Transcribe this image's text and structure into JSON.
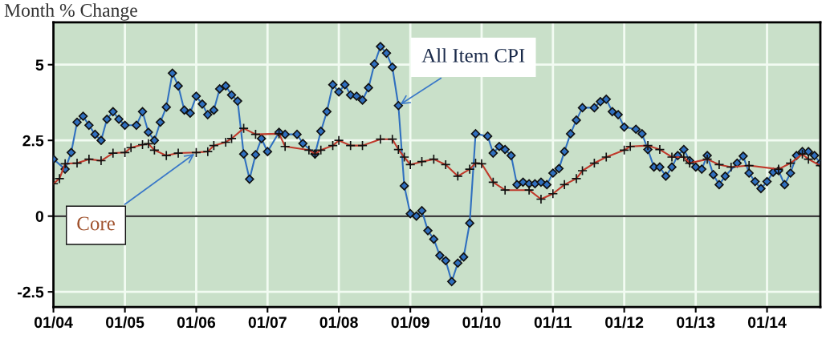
{
  "chart_data": {
    "type": "line",
    "title": "Month % Change",
    "xlim": [
      "2004-01",
      "2014-10"
    ],
    "ylim": [
      -3,
      6.4
    ],
    "xticks": [
      {
        "value": "2004-01",
        "label": "01/04"
      },
      {
        "value": "2005-01",
        "label": "01/05"
      },
      {
        "value": "2006-01",
        "label": "01/06"
      },
      {
        "value": "2007-01",
        "label": "01/07"
      },
      {
        "value": "2008-01",
        "label": "01/08"
      },
      {
        "value": "2009-01",
        "label": "01/09"
      },
      {
        "value": "2010-01",
        "label": "01/10"
      },
      {
        "value": "2011-01",
        "label": "01/11"
      },
      {
        "value": "2012-01",
        "label": "01/12"
      },
      {
        "value": "2013-01",
        "label": "01/13"
      },
      {
        "value": "2014-01",
        "label": "01/14"
      }
    ],
    "yticks": [
      -2.5,
      0,
      2.5,
      5
    ],
    "grid": true,
    "legend": false,
    "ref_lines": [
      {
        "axis": "y",
        "value": 0,
        "color": "#1a1a1a"
      }
    ],
    "series": [
      {
        "name": "All Item CPI",
        "color": "#2f6fbf",
        "marker": "diamond",
        "x": [
          "2004-01",
          "2004-03",
          "2004-04",
          "2004-05",
          "2004-06",
          "2004-07",
          "2004-08",
          "2004-09",
          "2004-10",
          "2004-11",
          "2004-12",
          "2005-01",
          "2005-03",
          "2005-04",
          "2005-05",
          "2005-06",
          "2005-07",
          "2005-08",
          "2005-09",
          "2005-10",
          "2005-11",
          "2005-12",
          "2006-01",
          "2006-02",
          "2006-03",
          "2006-04",
          "2006-05",
          "2006-06",
          "2006-07",
          "2006-08",
          "2006-09",
          "2006-10",
          "2006-11",
          "2006-12",
          "2007-01",
          "2007-03",
          "2007-04",
          "2007-06",
          "2007-07",
          "2007-09",
          "2007-10",
          "2007-11",
          "2007-12",
          "2008-01",
          "2008-02",
          "2008-03",
          "2008-04",
          "2008-05",
          "2008-06",
          "2008-07",
          "2008-08",
          "2008-09",
          "2008-10",
          "2008-11",
          "2008-12",
          "2009-01",
          "2009-02",
          "2009-03",
          "2009-04",
          "2009-05",
          "2009-06",
          "2009-07",
          "2009-08",
          "2009-09",
          "2009-10",
          "2009-11",
          "2009-12",
          "2010-02",
          "2010-03",
          "2010-04",
          "2010-05",
          "2010-06",
          "2010-07",
          "2010-08",
          "2010-09",
          "2010-10",
          "2010-11",
          "2010-12",
          "2011-01",
          "2011-02",
          "2011-03",
          "2011-04",
          "2011-05",
          "2011-06",
          "2011-08",
          "2011-09",
          "2011-10",
          "2011-11",
          "2011-12",
          "2012-01",
          "2012-03",
          "2012-04",
          "2012-05",
          "2012-06",
          "2012-07",
          "2012-08",
          "2012-09",
          "2012-10",
          "2012-11",
          "2012-12",
          "2013-01",
          "2013-02",
          "2013-03",
          "2013-04",
          "2013-05",
          "2013-06",
          "2013-08",
          "2013-09",
          "2013-10",
          "2013-11",
          "2013-12",
          "2014-01",
          "2014-02",
          "2014-03",
          "2014-04",
          "2014-05",
          "2014-06",
          "2014-07",
          "2014-08",
          "2014-09",
          "2014-10"
        ],
        "values": [
          1.88,
          1.55,
          2.1,
          3.1,
          3.3,
          3.0,
          2.7,
          2.5,
          3.2,
          3.45,
          3.2,
          3.0,
          3.0,
          3.45,
          2.77,
          2.5,
          3.1,
          3.6,
          4.72,
          4.3,
          3.5,
          3.4,
          3.96,
          3.7,
          3.35,
          3.5,
          4.2,
          4.3,
          4.0,
          3.8,
          2.05,
          1.22,
          2.03,
          2.56,
          2.13,
          2.77,
          2.7,
          2.7,
          2.4,
          2.05,
          2.8,
          3.45,
          4.34,
          4.1,
          4.34,
          4.0,
          3.96,
          3.83,
          4.24,
          5.02,
          5.6,
          5.38,
          4.92,
          3.65,
          1.0,
          0.08,
          0.0,
          0.18,
          -0.48,
          -0.76,
          -1.3,
          -1.47,
          -2.16,
          -1.55,
          -1.35,
          -0.23,
          2.72,
          2.64,
          2.08,
          2.3,
          2.2,
          2.0,
          1.04,
          1.12,
          1.07,
          1.07,
          1.12,
          1.04,
          1.42,
          1.57,
          2.13,
          2.72,
          3.17,
          3.58,
          3.58,
          3.78,
          3.86,
          3.45,
          3.35,
          2.94,
          2.87,
          2.72,
          2.2,
          1.62,
          1.62,
          1.32,
          1.62,
          2.0,
          2.2,
          1.83,
          1.62,
          1.55,
          2.0,
          1.37,
          1.04,
          1.32,
          1.75,
          1.98,
          1.42,
          1.14,
          0.91,
          1.14,
          1.45,
          1.5,
          1.04,
          1.42,
          2.0,
          2.13,
          2.13,
          2.0,
          1.75
        ]
      },
      {
        "name": "Core",
        "color": "#c0392b",
        "marker": "cross",
        "x": [
          "2004-01",
          "2004-02",
          "2004-03",
          "2004-05",
          "2004-07",
          "2004-09",
          "2004-11",
          "2005-01",
          "2005-02",
          "2005-04",
          "2005-05",
          "2005-06",
          "2005-08",
          "2005-10",
          "2006-01",
          "2006-03",
          "2006-04",
          "2006-06",
          "2006-07",
          "2006-09",
          "2006-11",
          "2007-03",
          "2007-04",
          "2007-08",
          "2007-09",
          "2007-10",
          "2007-12",
          "2008-01",
          "2008-03",
          "2008-05",
          "2008-08",
          "2008-10",
          "2008-11",
          "2008-12",
          "2009-01",
          "2009-03",
          "2009-05",
          "2009-07",
          "2009-09",
          "2009-11",
          "2009-12",
          "2010-01",
          "2010-03",
          "2010-05",
          "2010-09",
          "2010-11",
          "2011-01",
          "2011-03",
          "2011-05",
          "2011-06",
          "2011-08",
          "2011-10",
          "2012-01",
          "2012-02",
          "2012-05",
          "2012-07",
          "2012-09",
          "2012-11",
          "2012-12",
          "2013-03",
          "2013-05",
          "2013-07",
          "2013-10",
          "2014-03",
          "2014-05",
          "2014-07",
          "2014-08",
          "2014-10"
        ],
        "values": [
          1.07,
          1.24,
          1.73,
          1.75,
          1.88,
          1.83,
          2.08,
          2.1,
          2.26,
          2.36,
          2.39,
          2.18,
          2.0,
          2.08,
          2.1,
          2.13,
          2.33,
          2.44,
          2.56,
          2.9,
          2.7,
          2.72,
          2.3,
          2.18,
          2.05,
          2.18,
          2.33,
          2.5,
          2.33,
          2.33,
          2.54,
          2.54,
          2.2,
          1.95,
          1.7,
          1.8,
          1.88,
          1.7,
          1.32,
          1.55,
          1.75,
          1.73,
          1.12,
          0.86,
          0.86,
          0.56,
          0.74,
          1.04,
          1.24,
          1.5,
          1.75,
          1.95,
          2.18,
          2.3,
          2.33,
          2.2,
          1.95,
          1.95,
          1.75,
          1.88,
          1.7,
          1.62,
          1.67,
          1.55,
          1.75,
          2.05,
          1.88,
          1.67
        ]
      }
    ]
  }
}
